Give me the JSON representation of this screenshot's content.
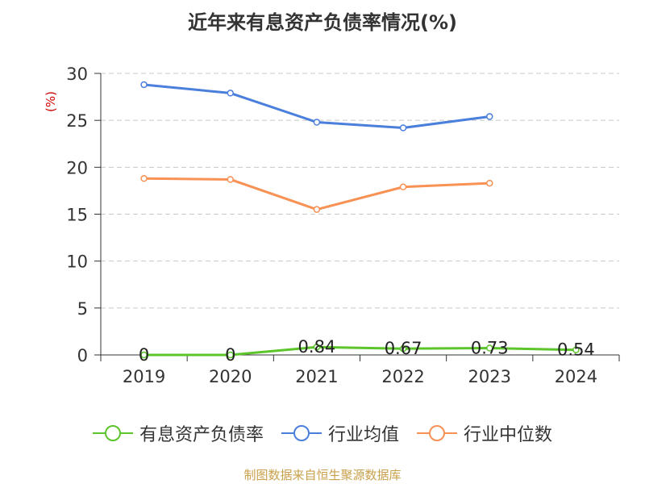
{
  "title": "近年来有息资产负债率情况(%)",
  "source_note": "制图数据来自恒生聚源数据库",
  "colors": {
    "debt_ratio": "#5bc52b",
    "industry_avg": "#4a7fdc",
    "industry_median": "#f79154",
    "ylabel": "#cc0000",
    "grid": "#c8c8c8",
    "axis": "#333333"
  },
  "chart_data": {
    "type": "line",
    "title": "近年来有息资产负债率情况(%)",
    "xlabel": "",
    "ylabel": "(%)",
    "ylim": [
      0,
      30
    ],
    "yticks": [
      0,
      5,
      10,
      15,
      20,
      25,
      30
    ],
    "categories": [
      "2019",
      "2020",
      "2021",
      "2022",
      "2023",
      "2024"
    ],
    "grid": "horizontal dashed",
    "legend_position": "bottom",
    "series": [
      {
        "name": "有息资产负债率",
        "color": "#5bc52b",
        "values": [
          0,
          0,
          0.84,
          0.67,
          0.73,
          0.54
        ],
        "data_labels": [
          "0",
          "0",
          "0.84",
          "0.67",
          "0.73",
          "0.54"
        ]
      },
      {
        "name": "行业均值",
        "color": "#4a7fdc",
        "values": [
          28.8,
          27.9,
          24.8,
          24.2,
          25.4,
          null
        ]
      },
      {
        "name": "行业中位数",
        "color": "#f79154",
        "values": [
          18.8,
          18.7,
          15.5,
          17.9,
          18.3,
          null
        ]
      }
    ]
  }
}
